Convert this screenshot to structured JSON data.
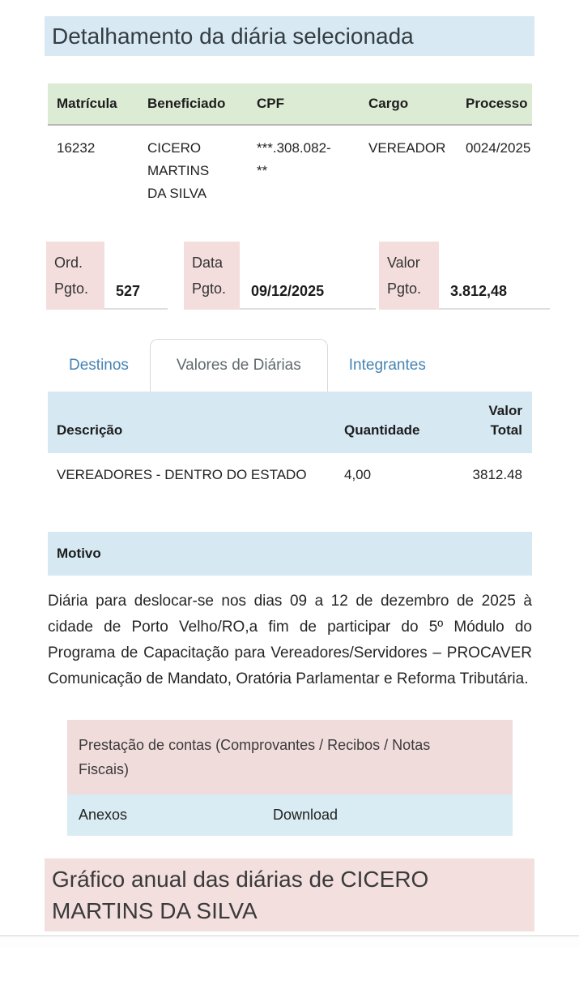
{
  "page": {
    "title": "Detalhamento da diária selecionada"
  },
  "beneficiary_table": {
    "headers": [
      "Matrícula",
      "Beneficiado",
      "CPF",
      "Cargo",
      "Processo"
    ],
    "row": {
      "matricula": "16232",
      "beneficiado": "CICERO MARTINS DA SILVA",
      "cpf": "***.308.082-**",
      "cargo": "VEREADOR",
      "processo": "0024/2025"
    }
  },
  "payment": {
    "fields": [
      {
        "label": "Ord. Pgto.",
        "value": "527"
      },
      {
        "label": "Data Pgto.",
        "value": "09/12/2025"
      },
      {
        "label": "Valor Pgto.",
        "value": "3.812,48"
      }
    ]
  },
  "tabs": [
    {
      "label": "Destinos",
      "active": false
    },
    {
      "label": "Valores de Diárias",
      "active": true
    },
    {
      "label": "Integrantes",
      "active": false
    }
  ],
  "valores_table": {
    "headers": {
      "descricao": "Descrição",
      "quantidade": "Quantidade",
      "valor_total": "Valor Total"
    },
    "rows": [
      {
        "descricao": "VEREADORES - DENTRO DO ESTADO",
        "quantidade": "4,00",
        "valor_total": "3812.48"
      }
    ]
  },
  "motivo": {
    "header": "Motivo",
    "text": "Diária para deslocar-se nos dias 09 a 12 de dezembro de 2025 à cidade de Porto Velho/RO,a fim de participar do 5º Módulo do Programa de Capacitação para Vereadores/Servidores – PROCAVER Comunicação de Mandato, Oratória Parlamentar e Reforma Tributária."
  },
  "prestacao": {
    "header": "Prestação de contas (Comprovantes / Recibos / Notas Fiscais)",
    "columns": {
      "anexos": "Anexos",
      "download": "Download"
    }
  },
  "chart_section": {
    "title": "Gráfico anual das diárias de CICERO MARTINS DA SILVA"
  },
  "colors": {
    "banner_blue": "#d9e9f3",
    "table_green": "#dcebd4",
    "label_pink": "#f3dedd",
    "header_blue": "#d6e9f3",
    "link_blue": "#4584b4"
  }
}
